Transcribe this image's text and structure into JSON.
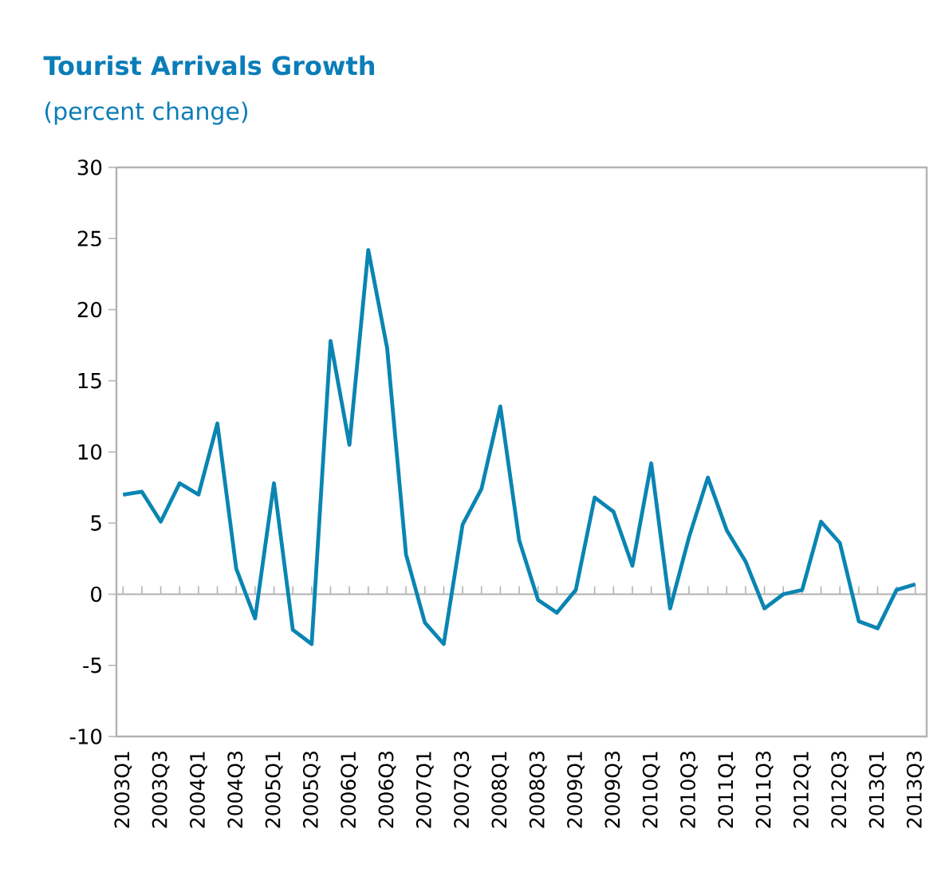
{
  "chart_data": {
    "type": "line",
    "title": "Tourist Arrivals Growth",
    "subtitle": "(percent change)",
    "categories": [
      "2003Q1",
      null,
      "2003Q3",
      null,
      "2004Q1",
      null,
      "2004Q3",
      null,
      "2005Q1",
      null,
      "2005Q3",
      null,
      "2006Q1",
      null,
      "2006Q3",
      null,
      "2007Q1",
      null,
      "2007Q3",
      null,
      "2008Q1",
      null,
      "2008Q3",
      null,
      "2009Q1",
      null,
      "2009Q3",
      null,
      "2010Q1",
      null,
      "2010Q3",
      null,
      "2011Q1",
      null,
      "2011Q3",
      null,
      "2012Q1",
      null,
      "2012Q3",
      null,
      "2013Q1",
      null,
      "2013Q3"
    ],
    "series": [
      {
        "color": "#0a85b2",
        "values": [
          7.0,
          7.2,
          5.1,
          7.8,
          7.0,
          12.0,
          1.8,
          -1.7,
          7.8,
          -2.5,
          -3.5,
          17.8,
          10.5,
          24.2,
          17.3,
          2.8,
          -2.0,
          -3.5,
          4.9,
          7.4,
          13.2,
          3.8,
          -0.4,
          -1.3,
          0.3,
          6.8,
          5.8,
          2.0,
          9.2,
          -1.0,
          4.0,
          8.2,
          4.5,
          2.3,
          -1.0,
          0.0,
          0.3,
          5.1,
          3.6,
          -1.9,
          -2.4,
          0.3,
          0.7
        ]
      }
    ],
    "ylim": [
      -10,
      30
    ],
    "yticks": [
      -10,
      -5,
      0,
      5,
      10,
      15,
      20,
      25,
      30
    ],
    "marker": "none",
    "line_style": "solid"
  }
}
